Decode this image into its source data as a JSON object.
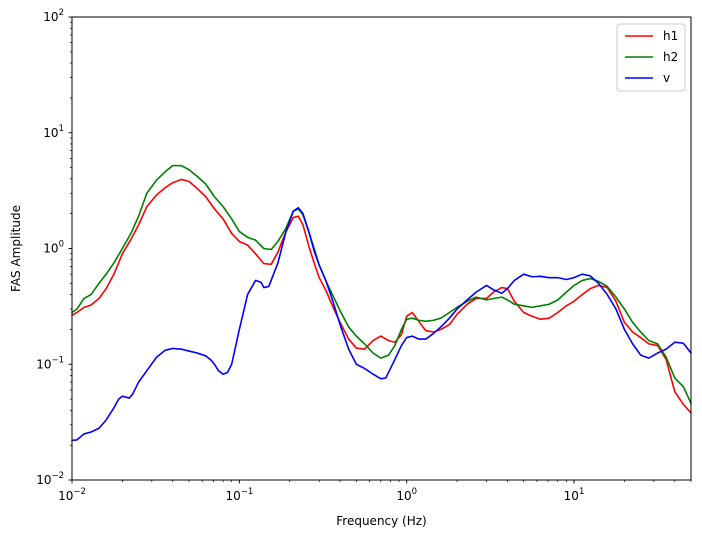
{
  "chart_data": {
    "type": "line",
    "title": "",
    "xlabel": "Frequency (Hz)",
    "ylabel": "FAS Amplitude",
    "xscale": "log",
    "yscale": "log",
    "xlim": [
      0.01,
      50
    ],
    "ylim": [
      0.01,
      100
    ],
    "grid": false,
    "legend_position": "top-right",
    "x_ticks": [
      {
        "value": 0.01,
        "base": "10",
        "exp": "−2"
      },
      {
        "value": 0.1,
        "base": "10",
        "exp": "−1"
      },
      {
        "value": 1,
        "base": "10",
        "exp": "0"
      },
      {
        "value": 10,
        "base": "10",
        "exp": "1"
      }
    ],
    "y_ticks": [
      {
        "value": 0.01,
        "base": "10",
        "exp": "−2"
      },
      {
        "value": 0.1,
        "base": "10",
        "exp": "−1"
      },
      {
        "value": 1,
        "base": "10",
        "exp": "0"
      },
      {
        "value": 10,
        "base": "10",
        "exp": "1"
      },
      {
        "value": 100,
        "base": "10",
        "exp": "2"
      }
    ],
    "series": [
      {
        "name": "h1",
        "color": "#ff0000",
        "points": [
          [
            0.01,
            0.265
          ],
          [
            0.0107,
            0.28
          ],
          [
            0.0118,
            0.31
          ],
          [
            0.013,
            0.325
          ],
          [
            0.0145,
            0.37
          ],
          [
            0.016,
            0.45
          ],
          [
            0.0178,
            0.6
          ],
          [
            0.02,
            0.9
          ],
          [
            0.0225,
            1.2
          ],
          [
            0.025,
            1.6
          ],
          [
            0.028,
            2.3
          ],
          [
            0.032,
            2.9
          ],
          [
            0.036,
            3.35
          ],
          [
            0.04,
            3.7
          ],
          [
            0.045,
            3.95
          ],
          [
            0.05,
            3.8
          ],
          [
            0.056,
            3.3
          ],
          [
            0.063,
            2.8
          ],
          [
            0.071,
            2.2
          ],
          [
            0.08,
            1.8
          ],
          [
            0.09,
            1.35
          ],
          [
            0.1,
            1.15
          ],
          [
            0.112,
            1.07
          ],
          [
            0.125,
            0.9
          ],
          [
            0.14,
            0.74
          ],
          [
            0.155,
            0.73
          ],
          [
            0.17,
            0.93
          ],
          [
            0.19,
            1.4
          ],
          [
            0.21,
            1.85
          ],
          [
            0.225,
            1.9
          ],
          [
            0.24,
            1.6
          ],
          [
            0.26,
            1.05
          ],
          [
            0.28,
            0.75
          ],
          [
            0.3,
            0.56
          ],
          [
            0.33,
            0.43
          ],
          [
            0.36,
            0.32
          ],
          [
            0.4,
            0.23
          ],
          [
            0.45,
            0.165
          ],
          [
            0.5,
            0.138
          ],
          [
            0.56,
            0.135
          ],
          [
            0.63,
            0.16
          ],
          [
            0.7,
            0.175
          ],
          [
            0.78,
            0.16
          ],
          [
            0.85,
            0.155
          ],
          [
            0.93,
            0.18
          ],
          [
            1.0,
            0.26
          ],
          [
            1.08,
            0.28
          ],
          [
            1.18,
            0.235
          ],
          [
            1.3,
            0.195
          ],
          [
            1.45,
            0.19
          ],
          [
            1.6,
            0.2
          ],
          [
            1.8,
            0.22
          ],
          [
            2.0,
            0.27
          ],
          [
            2.3,
            0.33
          ],
          [
            2.6,
            0.37
          ],
          [
            3.0,
            0.37
          ],
          [
            3.3,
            0.42
          ],
          [
            3.7,
            0.46
          ],
          [
            4.0,
            0.45
          ],
          [
            4.4,
            0.35
          ],
          [
            5.0,
            0.28
          ],
          [
            5.6,
            0.26
          ],
          [
            6.3,
            0.245
          ],
          [
            7.1,
            0.25
          ],
          [
            8.0,
            0.28
          ],
          [
            9.0,
            0.32
          ],
          [
            10.0,
            0.35
          ],
          [
            11.2,
            0.4
          ],
          [
            12.5,
            0.45
          ],
          [
            14.0,
            0.48
          ],
          [
            15.8,
            0.46
          ],
          [
            17.8,
            0.35
          ],
          [
            20.0,
            0.23
          ],
          [
            22.4,
            0.19
          ],
          [
            25.0,
            0.17
          ],
          [
            28.0,
            0.15
          ],
          [
            31.6,
            0.145
          ],
          [
            35.5,
            0.11
          ],
          [
            40.0,
            0.058
          ],
          [
            45.0,
            0.045
          ],
          [
            50.0,
            0.038
          ]
        ]
      },
      {
        "name": "h2",
        "color": "#008000",
        "points": [
          [
            0.01,
            0.28
          ],
          [
            0.0107,
            0.3
          ],
          [
            0.0118,
            0.37
          ],
          [
            0.013,
            0.4
          ],
          [
            0.0145,
            0.5
          ],
          [
            0.016,
            0.6
          ],
          [
            0.0178,
            0.75
          ],
          [
            0.02,
            1.0
          ],
          [
            0.0225,
            1.35
          ],
          [
            0.025,
            1.9
          ],
          [
            0.028,
            3.0
          ],
          [
            0.032,
            3.9
          ],
          [
            0.036,
            4.6
          ],
          [
            0.04,
            5.2
          ],
          [
            0.045,
            5.2
          ],
          [
            0.05,
            4.8
          ],
          [
            0.056,
            4.2
          ],
          [
            0.063,
            3.6
          ],
          [
            0.071,
            2.8
          ],
          [
            0.08,
            2.3
          ],
          [
            0.09,
            1.8
          ],
          [
            0.1,
            1.4
          ],
          [
            0.112,
            1.25
          ],
          [
            0.125,
            1.18
          ],
          [
            0.14,
            1.0
          ],
          [
            0.155,
            0.98
          ],
          [
            0.17,
            1.15
          ],
          [
            0.19,
            1.5
          ],
          [
            0.21,
            2.1
          ],
          [
            0.225,
            2.2
          ],
          [
            0.24,
            1.95
          ],
          [
            0.26,
            1.4
          ],
          [
            0.28,
            1.0
          ],
          [
            0.3,
            0.72
          ],
          [
            0.33,
            0.52
          ],
          [
            0.36,
            0.4
          ],
          [
            0.4,
            0.29
          ],
          [
            0.45,
            0.21
          ],
          [
            0.5,
            0.175
          ],
          [
            0.56,
            0.15
          ],
          [
            0.63,
            0.125
          ],
          [
            0.7,
            0.113
          ],
          [
            0.78,
            0.12
          ],
          [
            0.85,
            0.145
          ],
          [
            0.93,
            0.2
          ],
          [
            1.0,
            0.245
          ],
          [
            1.08,
            0.25
          ],
          [
            1.18,
            0.24
          ],
          [
            1.3,
            0.235
          ],
          [
            1.45,
            0.24
          ],
          [
            1.6,
            0.25
          ],
          [
            1.8,
            0.28
          ],
          [
            2.0,
            0.31
          ],
          [
            2.3,
            0.35
          ],
          [
            2.6,
            0.38
          ],
          [
            3.0,
            0.36
          ],
          [
            3.3,
            0.37
          ],
          [
            3.7,
            0.38
          ],
          [
            4.0,
            0.36
          ],
          [
            4.4,
            0.33
          ],
          [
            5.0,
            0.32
          ],
          [
            5.6,
            0.31
          ],
          [
            6.3,
            0.32
          ],
          [
            7.1,
            0.33
          ],
          [
            8.0,
            0.36
          ],
          [
            9.0,
            0.42
          ],
          [
            10.0,
            0.48
          ],
          [
            11.2,
            0.53
          ],
          [
            12.5,
            0.55
          ],
          [
            14.0,
            0.52
          ],
          [
            15.8,
            0.47
          ],
          [
            17.8,
            0.38
          ],
          [
            20.0,
            0.3
          ],
          [
            22.4,
            0.23
          ],
          [
            25.0,
            0.19
          ],
          [
            28.0,
            0.16
          ],
          [
            31.6,
            0.15
          ],
          [
            35.5,
            0.115
          ],
          [
            40.0,
            0.076
          ],
          [
            45.0,
            0.064
          ],
          [
            50.0,
            0.046
          ]
        ]
      },
      {
        "name": "v",
        "color": "#0000ff",
        "points": [
          [
            0.01,
            0.022
          ],
          [
            0.0107,
            0.0222
          ],
          [
            0.0118,
            0.025
          ],
          [
            0.013,
            0.026
          ],
          [
            0.0145,
            0.028
          ],
          [
            0.016,
            0.033
          ],
          [
            0.0178,
            0.042
          ],
          [
            0.019,
            0.05
          ],
          [
            0.02,
            0.053
          ],
          [
            0.022,
            0.051
          ],
          [
            0.023,
            0.055
          ],
          [
            0.025,
            0.07
          ],
          [
            0.028,
            0.088
          ],
          [
            0.032,
            0.115
          ],
          [
            0.036,
            0.132
          ],
          [
            0.04,
            0.137
          ],
          [
            0.045,
            0.135
          ],
          [
            0.05,
            0.13
          ],
          [
            0.056,
            0.125
          ],
          [
            0.063,
            0.118
          ],
          [
            0.068,
            0.108
          ],
          [
            0.071,
            0.1
          ],
          [
            0.075,
            0.088
          ],
          [
            0.08,
            0.082
          ],
          [
            0.085,
            0.085
          ],
          [
            0.09,
            0.1
          ],
          [
            0.1,
            0.2
          ],
          [
            0.112,
            0.4
          ],
          [
            0.125,
            0.53
          ],
          [
            0.135,
            0.51
          ],
          [
            0.14,
            0.46
          ],
          [
            0.15,
            0.47
          ],
          [
            0.17,
            0.75
          ],
          [
            0.19,
            1.4
          ],
          [
            0.21,
            2.1
          ],
          [
            0.225,
            2.25
          ],
          [
            0.24,
            2.0
          ],
          [
            0.26,
            1.4
          ],
          [
            0.28,
            0.95
          ],
          [
            0.3,
            0.72
          ],
          [
            0.33,
            0.52
          ],
          [
            0.36,
            0.36
          ],
          [
            0.4,
            0.22
          ],
          [
            0.45,
            0.135
          ],
          [
            0.5,
            0.1
          ],
          [
            0.56,
            0.092
          ],
          [
            0.63,
            0.082
          ],
          [
            0.7,
            0.075
          ],
          [
            0.75,
            0.076
          ],
          [
            0.85,
            0.11
          ],
          [
            0.93,
            0.145
          ],
          [
            1.0,
            0.17
          ],
          [
            1.08,
            0.175
          ],
          [
            1.18,
            0.165
          ],
          [
            1.3,
            0.165
          ],
          [
            1.45,
            0.185
          ],
          [
            1.6,
            0.21
          ],
          [
            1.8,
            0.25
          ],
          [
            2.0,
            0.3
          ],
          [
            2.3,
            0.36
          ],
          [
            2.6,
            0.42
          ],
          [
            3.0,
            0.48
          ],
          [
            3.3,
            0.44
          ],
          [
            3.7,
            0.41
          ],
          [
            4.0,
            0.45
          ],
          [
            4.4,
            0.53
          ],
          [
            5.0,
            0.6
          ],
          [
            5.6,
            0.57
          ],
          [
            6.3,
            0.575
          ],
          [
            7.1,
            0.56
          ],
          [
            8.0,
            0.56
          ],
          [
            9.0,
            0.54
          ],
          [
            10.0,
            0.56
          ],
          [
            11.2,
            0.6
          ],
          [
            12.5,
            0.58
          ],
          [
            14.0,
            0.5
          ],
          [
            15.8,
            0.4
          ],
          [
            17.8,
            0.3
          ],
          [
            20.0,
            0.2
          ],
          [
            22.4,
            0.15
          ],
          [
            25.0,
            0.12
          ],
          [
            28.0,
            0.113
          ],
          [
            31.6,
            0.125
          ],
          [
            35.5,
            0.135
          ],
          [
            40.0,
            0.155
          ],
          [
            45.0,
            0.152
          ],
          [
            50.0,
            0.125
          ]
        ]
      }
    ]
  }
}
